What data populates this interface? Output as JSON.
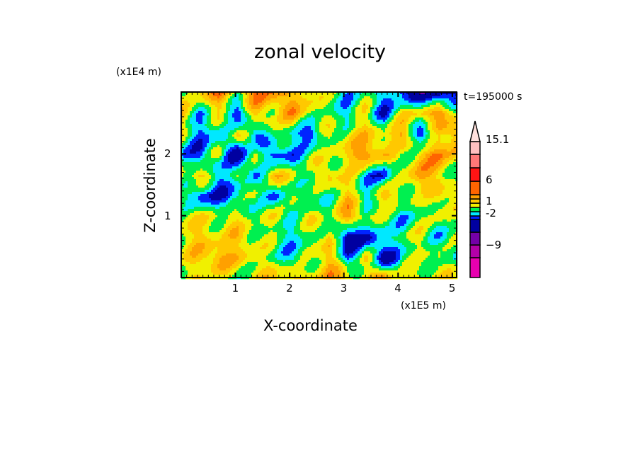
{
  "chart_data": {
    "type": "heatmap",
    "title": "zonal velocity",
    "xlabel": "X-coordinate",
    "ylabel": "Z-coordinate",
    "x_unit": "(x1E5 m)",
    "y_unit": "(x1E4 m)",
    "time_label": "t=195000 s",
    "xlim": [
      0,
      5.08
    ],
    "ylim": [
      0,
      3.0
    ],
    "x_ticks": [
      "1",
      "2",
      "3",
      "4",
      "5"
    ],
    "y_ticks": [
      "1",
      "2"
    ],
    "colorbar": {
      "labels": [
        {
          "text": "15.1",
          "value": 15.1
        },
        {
          "text": "6",
          "value": 6
        },
        {
          "text": "1",
          "value": 1
        },
        {
          "text": "-2",
          "value": -2
        },
        {
          "text": "−9",
          "value": -9
        }
      ],
      "levels": [
        -12,
        -9,
        -6,
        -3,
        -2,
        -1,
        0,
        1,
        2,
        3,
        6,
        9,
        12,
        15.1
      ],
      "colors": [
        "#e800b0",
        "#b400a8",
        "#7400a8",
        "#0000a0",
        "#0024ff",
        "#00e8ff",
        "#00f050",
        "#f0f000",
        "#ffc800",
        "#ffa000",
        "#ff6400",
        "#ff1414",
        "#ff7878",
        "#ffc0c0",
        "#ffe0dc"
      ]
    },
    "z_grid_note_rows_top_to_bottom": true,
    "z_grid": [
      [
        -0.5,
        1.5,
        3,
        0.5,
        3,
        3,
        1.5,
        1.5,
        -0.5,
        -1.5,
        -0.5,
        -1.5,
        -3,
        -5,
        -5,
        -3
      ],
      [
        1.5,
        -1.5,
        0.5,
        -3,
        1.5,
        0.5,
        2.5,
        0.5,
        -0.5,
        -1.5,
        0.5,
        -3,
        0.5,
        1.5,
        3,
        0.5
      ],
      [
        0.5,
        -2.5,
        -1.5,
        1.5,
        -3,
        0.5,
        -1.5,
        -3,
        0.5,
        0.5,
        1.5,
        0.5,
        2.5,
        -3,
        0.5,
        3
      ],
      [
        -1.5,
        -3,
        0.5,
        -5,
        0.5,
        -3,
        -2.5,
        0.5,
        -0.5,
        1.5,
        3,
        1.5,
        -0.5,
        1.5,
        3,
        1.5
      ],
      [
        0.5,
        1.5,
        -2,
        -0.5,
        -1.5,
        1.5,
        0.5,
        -0.5,
        1.5,
        0.5,
        -1.5,
        -3,
        0.5,
        2.5,
        1.5,
        -1.5
      ],
      [
        -0.5,
        -3,
        -3,
        -2,
        0.5,
        -3,
        0.5,
        -1.5,
        -0.5,
        1.5,
        -1.5,
        1.5,
        0.5,
        -0.5,
        1.5,
        0.5
      ],
      [
        0.5,
        0.5,
        0.5,
        0.5,
        -0.5,
        0.5,
        -0.5,
        0.5,
        -0.5,
        2.5,
        0.5,
        -0.5,
        -1.5,
        -0.5,
        0.5,
        -0.5
      ],
      [
        0.5,
        1.5,
        0.5,
        1.5,
        0.5,
        -0.5,
        -1.5,
        -0.5,
        1.5,
        -5,
        -3,
        -1.5,
        -0.5,
        0.5,
        -1.5,
        -0.5
      ],
      [
        0.5,
        1.5,
        2.5,
        1.5,
        0.5,
        -0.5,
        -1.5,
        -0.5,
        2.5,
        -3,
        1.5,
        -5,
        -0.5,
        -0.5,
        0.5,
        -1.5
      ],
      [
        -0.5,
        0.5,
        0.5,
        -0.5,
        0.5,
        1.5,
        1.5,
        0.5,
        2.5,
        1.5,
        0.5,
        2.5,
        0.5,
        0.5,
        0.5,
        0.5
      ]
    ]
  }
}
